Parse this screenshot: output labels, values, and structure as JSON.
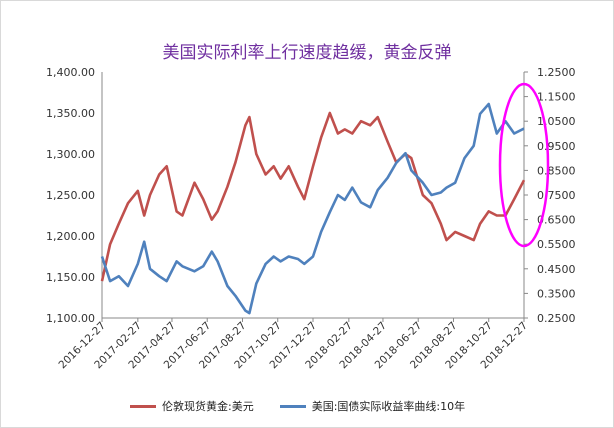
{
  "chart_data": {
    "type": "line",
    "title": "美国实际利率上行速度趋缓，黄金反弹",
    "x_ticks": [
      "2016-12-27",
      "2017-02-27",
      "2017-04-27",
      "2017-06-27",
      "2017-08-27",
      "2017-10-27",
      "2017-12-27",
      "2018-02-27",
      "2018-04-27",
      "2018-06-27",
      "2018-08-27",
      "2018-10-27",
      "2018-12-27"
    ],
    "y_left": {
      "min": 1100,
      "max": 1400,
      "ticks": [
        "1,100.00",
        "1,150.00",
        "1,200.00",
        "1,250.00",
        "1,300.00",
        "1,350.00",
        "1,400.00"
      ]
    },
    "y_right": {
      "min": 0.25,
      "max": 1.25,
      "ticks": [
        "0.2500",
        "0.3500",
        "0.4500",
        "0.5500",
        "0.6500",
        "0.7500",
        "0.8500",
        "0.9500",
        "1.0500",
        "1.1500",
        "1.2500"
      ]
    },
    "series": [
      {
        "name": "伦敦现货黄金:美元",
        "axis": "left",
        "color": "#c0504d",
        "x": [
          "2016-12-27",
          "2017-01-10",
          "2017-01-25",
          "2017-02-10",
          "2017-02-27",
          "2017-03-10",
          "2017-03-20",
          "2017-04-05",
          "2017-04-18",
          "2017-05-05",
          "2017-05-15",
          "2017-06-05",
          "2017-06-20",
          "2017-07-05",
          "2017-07-15",
          "2017-08-01",
          "2017-08-15",
          "2017-09-01",
          "2017-09-08",
          "2017-09-20",
          "2017-10-06",
          "2017-10-20",
          "2017-11-01",
          "2017-11-15",
          "2017-12-01",
          "2017-12-12",
          "2017-12-27",
          "2018-01-10",
          "2018-01-25",
          "2018-02-08",
          "2018-02-20",
          "2018-03-05",
          "2018-03-20",
          "2018-04-05",
          "2018-04-18",
          "2018-05-05",
          "2018-05-20",
          "2018-06-05",
          "2018-06-15",
          "2018-07-05",
          "2018-07-20",
          "2018-08-05",
          "2018-08-15",
          "2018-08-30",
          "2018-09-15",
          "2018-10-01",
          "2018-10-12",
          "2018-10-27",
          "2018-11-10",
          "2018-11-25",
          "2018-12-10",
          "2018-12-27"
        ],
        "values": [
          1145,
          1190,
          1215,
          1240,
          1255,
          1225,
          1250,
          1275,
          1285,
          1230,
          1225,
          1265,
          1245,
          1220,
          1230,
          1260,
          1290,
          1335,
          1345,
          1300,
          1275,
          1285,
          1270,
          1285,
          1260,
          1245,
          1285,
          1320,
          1350,
          1325,
          1330,
          1325,
          1340,
          1335,
          1345,
          1315,
          1290,
          1300,
          1295,
          1250,
          1240,
          1215,
          1195,
          1205,
          1200,
          1195,
          1215,
          1230,
          1225,
          1225,
          1245,
          1268
        ]
      },
      {
        "name": "美国:国债实际收益率曲线:10年",
        "axis": "right",
        "color": "#4f81bd",
        "x": [
          "2016-12-27",
          "2017-01-10",
          "2017-01-25",
          "2017-02-10",
          "2017-02-27",
          "2017-03-10",
          "2017-03-20",
          "2017-04-05",
          "2017-04-18",
          "2017-05-05",
          "2017-05-15",
          "2017-06-05",
          "2017-06-20",
          "2017-07-05",
          "2017-07-15",
          "2017-08-01",
          "2017-08-15",
          "2017-09-01",
          "2017-09-08",
          "2017-09-20",
          "2017-10-06",
          "2017-10-20",
          "2017-11-01",
          "2017-11-15",
          "2017-12-01",
          "2017-12-12",
          "2017-12-27",
          "2018-01-10",
          "2018-01-25",
          "2018-02-08",
          "2018-02-20",
          "2018-03-05",
          "2018-03-20",
          "2018-04-05",
          "2018-04-18",
          "2018-05-05",
          "2018-05-20",
          "2018-06-05",
          "2018-06-15",
          "2018-07-05",
          "2018-07-20",
          "2018-08-05",
          "2018-08-15",
          "2018-08-30",
          "2018-09-15",
          "2018-10-01",
          "2018-10-12",
          "2018-10-27",
          "2018-11-10",
          "2018-11-25",
          "2018-12-10",
          "2018-12-27"
        ],
        "values": [
          0.5,
          0.4,
          0.42,
          0.38,
          0.47,
          0.56,
          0.45,
          0.42,
          0.4,
          0.48,
          0.46,
          0.44,
          0.46,
          0.52,
          0.48,
          0.38,
          0.34,
          0.28,
          0.27,
          0.39,
          0.47,
          0.5,
          0.48,
          0.5,
          0.49,
          0.47,
          0.5,
          0.6,
          0.68,
          0.75,
          0.73,
          0.78,
          0.72,
          0.7,
          0.77,
          0.82,
          0.88,
          0.92,
          0.85,
          0.8,
          0.75,
          0.76,
          0.78,
          0.8,
          0.9,
          0.95,
          1.08,
          1.12,
          1.0,
          1.05,
          1.0,
          1.02
        ]
      }
    ]
  },
  "legend": {
    "gold_label": "伦敦现货黄金:美元",
    "rate_label": "美国:国债实际收益率曲线:10年"
  }
}
